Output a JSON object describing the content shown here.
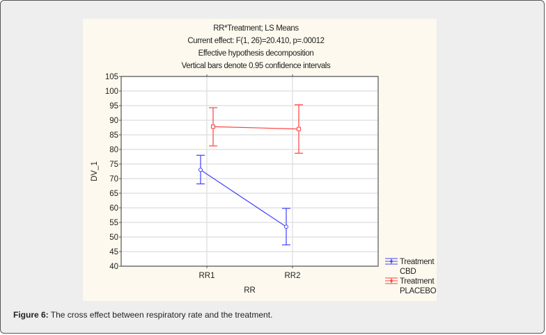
{
  "caption": {
    "label": "Figure 6:",
    "text": " The cross effect between respiratory rate and the treatment."
  },
  "chart_data": {
    "type": "line",
    "title": [
      "RR*Treatment; LS Means",
      "Current effect: F(1, 26)=20.410, p=.00012",
      "Effective hypothesis decomposition",
      "Vertical bars denote 0.95 confidence intervals"
    ],
    "xlabel": "RR",
    "ylabel": "DV_1",
    "categories": [
      "RR1",
      "RR2"
    ],
    "ylim": [
      40,
      105
    ],
    "yticks": [
      40,
      45,
      50,
      55,
      60,
      65,
      70,
      75,
      80,
      85,
      90,
      95,
      100,
      105
    ],
    "grid": true,
    "legend_position": "bottom-right",
    "series": [
      {
        "name": "Treatment CBD",
        "legend": [
          "Treatment",
          "CBD"
        ],
        "color": "#4040ff",
        "marker": "circle",
        "values": [
          73.0,
          53.5
        ],
        "ci_low": [
          68.2,
          47.3
        ],
        "ci_high": [
          78.0,
          59.8
        ]
      },
      {
        "name": "Treatment PLACEBO",
        "legend": [
          "Treatment",
          "PLACEBO"
        ],
        "color": "#ff4040",
        "marker": "square",
        "values": [
          87.8,
          87.0
        ],
        "ci_low": [
          81.2,
          78.7
        ],
        "ci_high": [
          94.3,
          95.3
        ]
      }
    ]
  }
}
